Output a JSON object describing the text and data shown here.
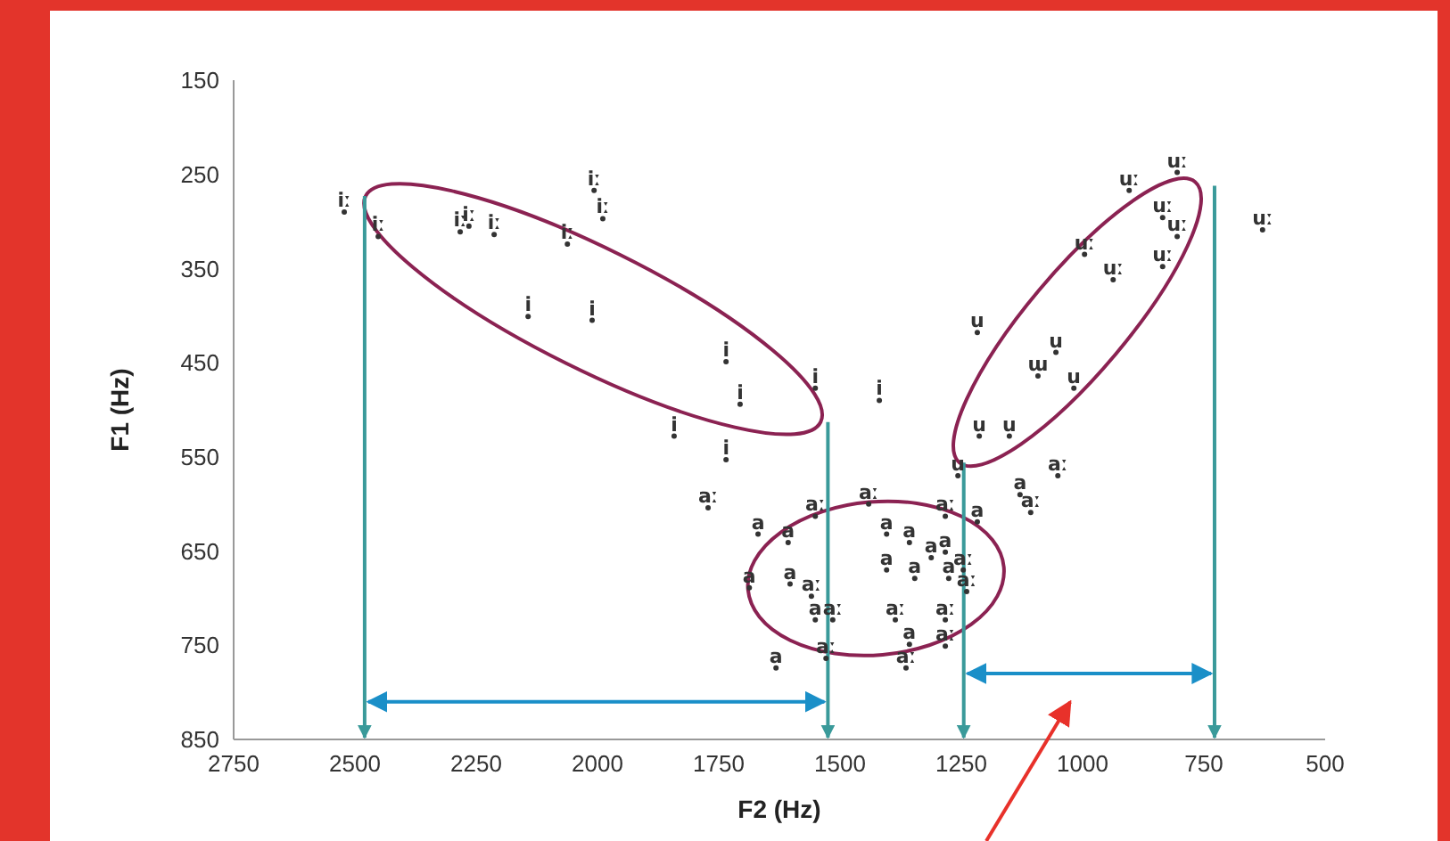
{
  "chart_data": {
    "type": "scatter",
    "xlabel": "F2 (Hz)",
    "ylabel": "F1 (Hz)",
    "xlim": [
      2750,
      500
    ],
    "ylim": [
      850,
      150
    ],
    "xticks": [
      2750,
      2500,
      2250,
      2000,
      1750,
      1500,
      1250,
      1000,
      750,
      500
    ],
    "yticks": [
      150,
      250,
      350,
      450,
      550,
      650,
      750,
      850
    ],
    "marker": "circle",
    "grid": false,
    "ref_lines": [
      {
        "axis": "x",
        "value": 2480,
        "color": "#3a9a9a"
      },
      {
        "axis": "x",
        "value": 1525,
        "color": "#3a9a9a"
      },
      {
        "axis": "x",
        "value": 1245,
        "color": "#3a9a9a"
      },
      {
        "axis": "x",
        "value": 728,
        "color": "#3a9a9a"
      }
    ],
    "series": [
      {
        "name": "iː",
        "color": "#333333",
        "x": [
          2522,
          2452,
          2283,
          2265,
          2213,
          2062,
          2007,
          1989
        ],
        "values": [
          290,
          316,
          311,
          305,
          314,
          324,
          267,
          297
        ]
      },
      {
        "name": "i",
        "color": "#333333",
        "x": [
          2143,
          2011,
          1735,
          1706,
          1842,
          1735,
          1551,
          1419
        ],
        "values": [
          401,
          405,
          449,
          494,
          528,
          553,
          477,
          490
        ]
      },
      {
        "name": "uː",
        "color": "#333333",
        "x": [
          904,
          805,
          835,
          805,
          996,
          937,
          835,
          629
        ],
        "values": [
          267,
          248,
          296,
          316,
          335,
          362,
          348,
          309
        ]
      },
      {
        "name": "u",
        "color": "#333333",
        "x": [
          1217,
          1055,
          1018,
          1213,
          1151,
          1257
        ],
        "values": [
          418,
          439,
          477,
          528,
          528,
          570
        ]
      },
      {
        "name": "ɯ",
        "color": "#333333",
        "x": [
          1092
        ],
        "values": [
          464
        ]
      },
      {
        "name": "aː",
        "color": "#333333",
        "x": [
          1772,
          1551,
          1441,
          1283,
          1246,
          1239,
          1559,
          1515,
          1386,
          1283,
          1529,
          1364,
          1283,
          1107,
          1051
        ],
        "values": [
          604,
          613,
          600,
          613,
          670,
          693,
          698,
          723,
          723,
          723,
          764,
          774,
          751,
          609,
          570
        ]
      },
      {
        "name": "a",
        "color": "#333333",
        "x": [
          1669,
          1607,
          1603,
          1687,
          1551,
          1632,
          1404,
          1357,
          1404,
          1346,
          1312,
          1283,
          1276,
          1217,
          1129,
          1357
        ],
        "values": [
          632,
          641,
          685,
          689,
          723,
          774,
          632,
          641,
          670,
          679,
          657,
          651,
          679,
          619,
          590,
          749
        ]
      }
    ]
  }
}
